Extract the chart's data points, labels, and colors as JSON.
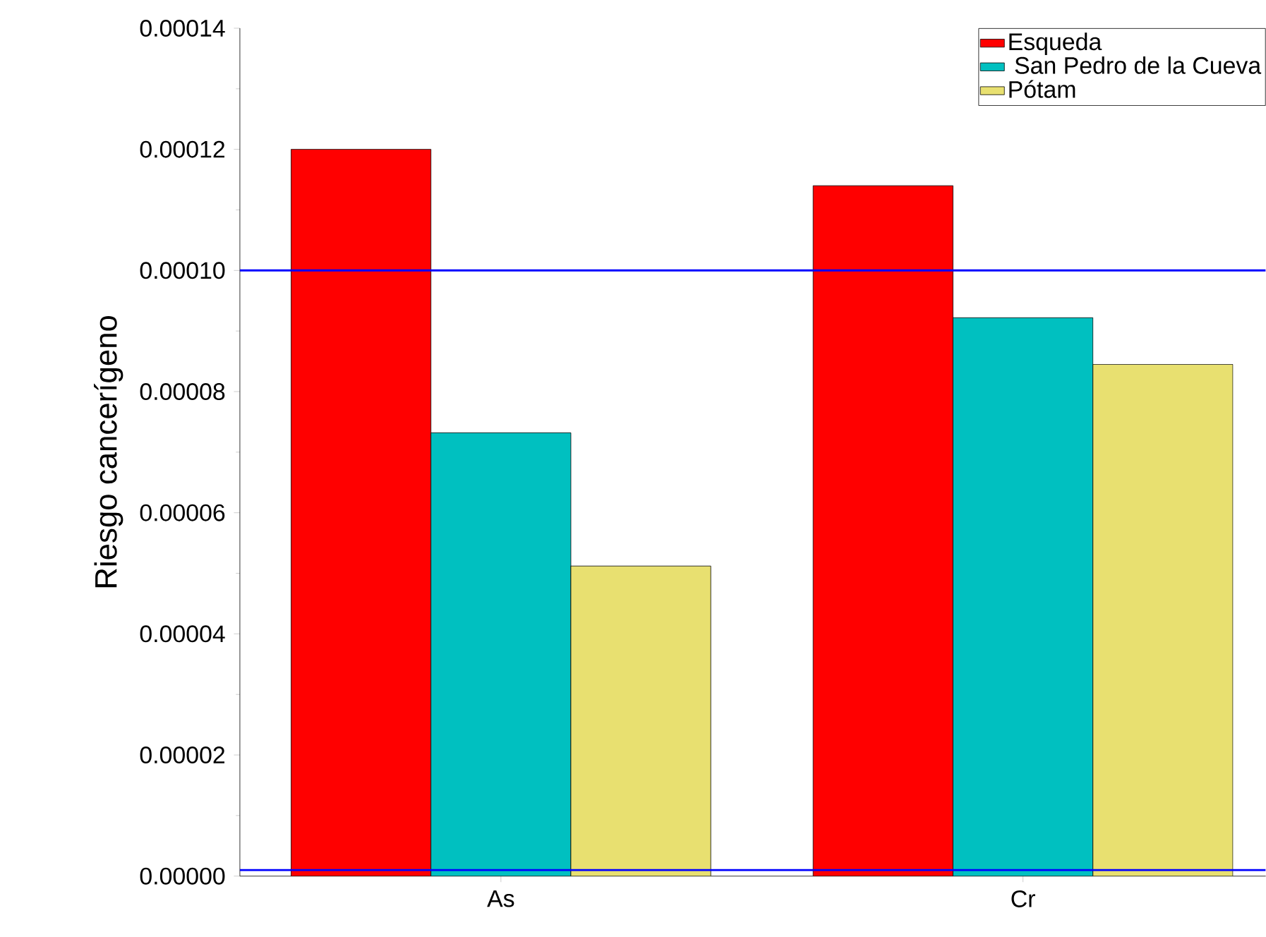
{
  "chart_data": {
    "type": "bar",
    "ylabel": "Riesgo cancerígeno",
    "categories": [
      "As",
      "Cr"
    ],
    "series": [
      {
        "name": "Esqueda",
        "color": "#ff0000",
        "values": [
          0.00012,
          0.000114
        ]
      },
      {
        "name": " San Pedro de la Cueva",
        "color": "#00c0c0",
        "values": [
          7.32e-05,
          9.22e-05
        ]
      },
      {
        "name": "Pótam",
        "color": "#e8e070",
        "values": [
          5.12e-05,
          8.45e-05
        ]
      }
    ],
    "ylim": [
      0,
      0.00014
    ],
    "yticks": [
      {
        "value": 0,
        "label": "0.00000"
      },
      {
        "value": 2e-05,
        "label": "0.00002"
      },
      {
        "value": 4e-05,
        "label": "0.00004"
      },
      {
        "value": 6e-05,
        "label": "0.00006"
      },
      {
        "value": 8e-05,
        "label": "0.00008"
      },
      {
        "value": 0.0001,
        "label": "0.00010"
      },
      {
        "value": 0.00012,
        "label": "0.00012"
      },
      {
        "value": 0.00014,
        "label": "0.00014"
      }
    ],
    "ref_lines": [
      {
        "axis": "y",
        "value": 0.0001,
        "color": "#0000ff"
      },
      {
        "axis": "y",
        "value": 1e-06,
        "color": "#0000ff"
      }
    ],
    "legend": "top right",
    "grid": false
  }
}
